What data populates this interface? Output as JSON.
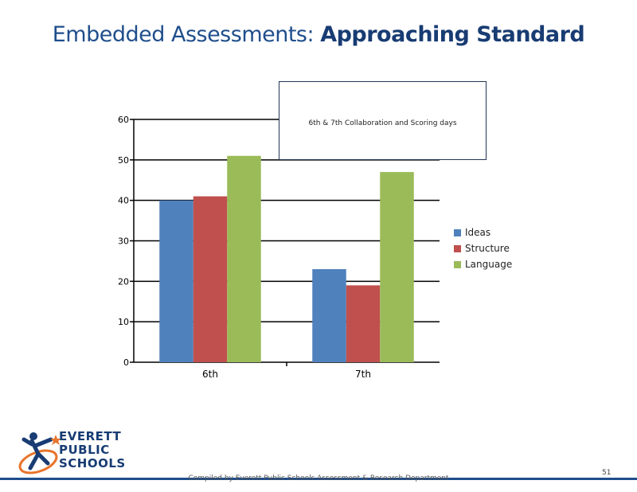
{
  "slide": {
    "title_prefix": "Embedded Assessments: ",
    "title_bold": "Approaching Standard",
    "page_number": "51",
    "footer": "Compiled by Everett Public Schools    Assessment & Research Department"
  },
  "logo": {
    "line1": "EVERETT",
    "line2": "PUBLIC",
    "line3": "SCHOOLS"
  },
  "annotation": "6th & 7th Collaboration and Scoring days",
  "colors": {
    "ideas": "#4f81bd",
    "structure": "#c0504d",
    "language": "#9bbb59",
    "title": "#1f4e8c"
  },
  "chart_data": {
    "type": "bar",
    "categories": [
      "6th",
      "7th"
    ],
    "series": [
      {
        "name": "Ideas",
        "values": [
          40,
          23
        ]
      },
      {
        "name": "Structure",
        "values": [
          41,
          19
        ]
      },
      {
        "name": "Language",
        "values": [
          51,
          47
        ]
      }
    ],
    "yticks": [
      "0",
      "10",
      "20",
      "30",
      "40",
      "50",
      "60"
    ],
    "ylim": [
      0,
      60
    ],
    "grid": true,
    "legend": "right"
  }
}
